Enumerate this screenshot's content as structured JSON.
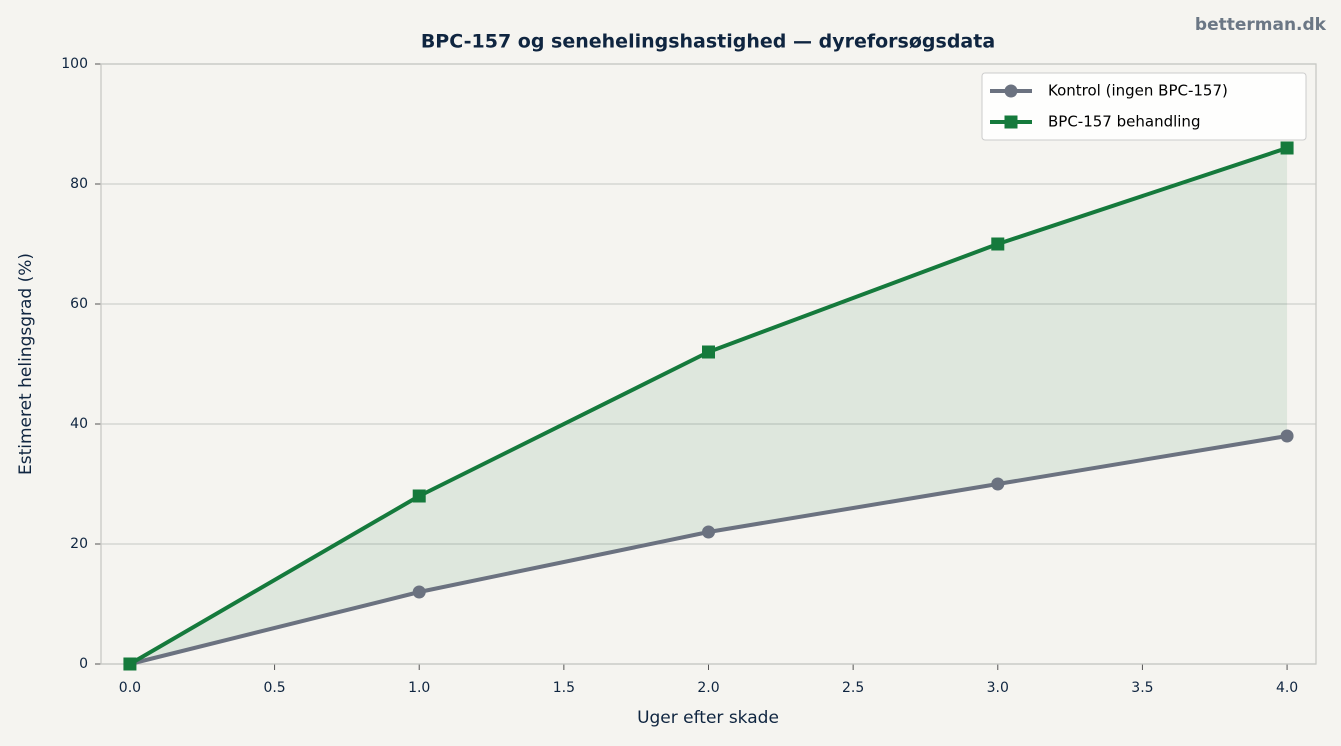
{
  "chart_data": {
    "type": "line",
    "title": "BPC-157 og senehelingshastighed — dyreforsøgsdata",
    "watermark": "betterman.dk",
    "xlabel": "Uger efter skade",
    "ylabel": "Estimeret helingsgrad (%)",
    "x": [
      0,
      1,
      2,
      3,
      4
    ],
    "series": [
      {
        "name": "Kontrol (ingen BPC-157)",
        "color": "#6b7280",
        "marker": "circle",
        "values": [
          0,
          12,
          22,
          30,
          38
        ]
      },
      {
        "name": "BPC-157 behandling",
        "color": "#157a3c",
        "marker": "square",
        "values": [
          0,
          28,
          52,
          70,
          86
        ]
      }
    ],
    "fill_between": true,
    "xlim": [
      -0.1,
      4.1
    ],
    "xticks": [
      {
        "value": 0,
        "label": "0.0"
      },
      {
        "value": 0.5,
        "label": "0.5"
      },
      {
        "value": 1,
        "label": "1.0"
      },
      {
        "value": 1.5,
        "label": "1.5"
      },
      {
        "value": 2,
        "label": "2.0"
      },
      {
        "value": 2.5,
        "label": "2.5"
      },
      {
        "value": 3,
        "label": "3.0"
      },
      {
        "value": 3.5,
        "label": "3.5"
      },
      {
        "value": 4,
        "label": "4.0"
      }
    ],
    "ylim": [
      0,
      100
    ],
    "yticks": [
      0,
      20,
      40,
      60,
      80,
      100
    ],
    "grid": "y",
    "legend": "upper right"
  }
}
